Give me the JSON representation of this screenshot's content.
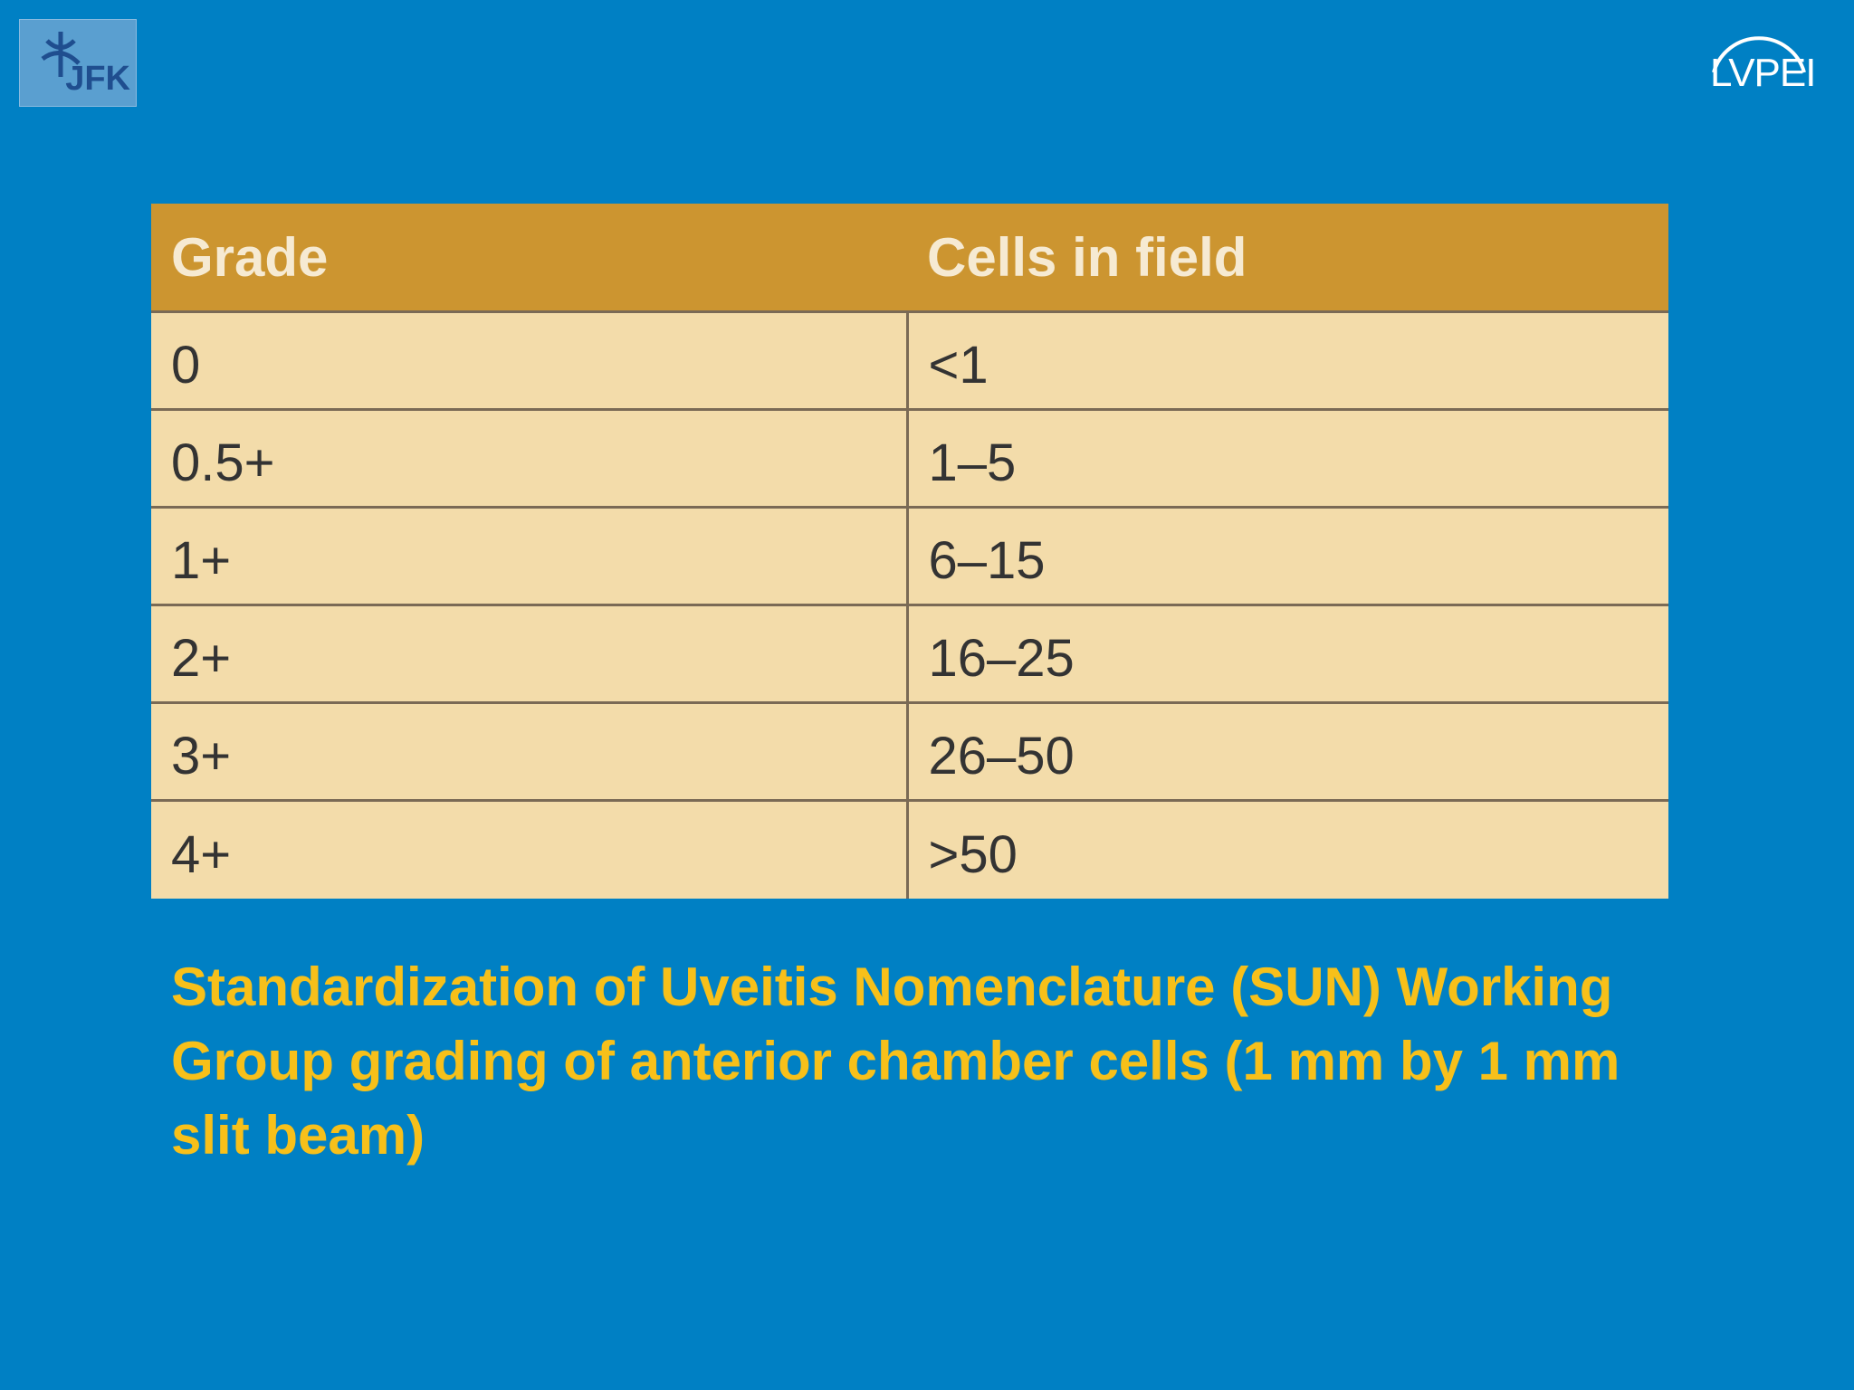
{
  "header": {
    "left_logo": "JFK",
    "right_logo": "LVPEI"
  },
  "table": {
    "columns": [
      "Grade",
      "Cells in field"
    ],
    "rows": [
      [
        "0",
        "<1"
      ],
      [
        "0.5+",
        "1–5"
      ],
      [
        "1+",
        "6–15"
      ],
      [
        "2+",
        "16–25"
      ],
      [
        "3+",
        "26–50"
      ],
      [
        "4+",
        ">50"
      ]
    ]
  },
  "caption": "Standardization of Uveitis Nomenclature (SUN) Working Group grading of anterior chamber cells (1 mm by 1 mm slit beam)"
}
